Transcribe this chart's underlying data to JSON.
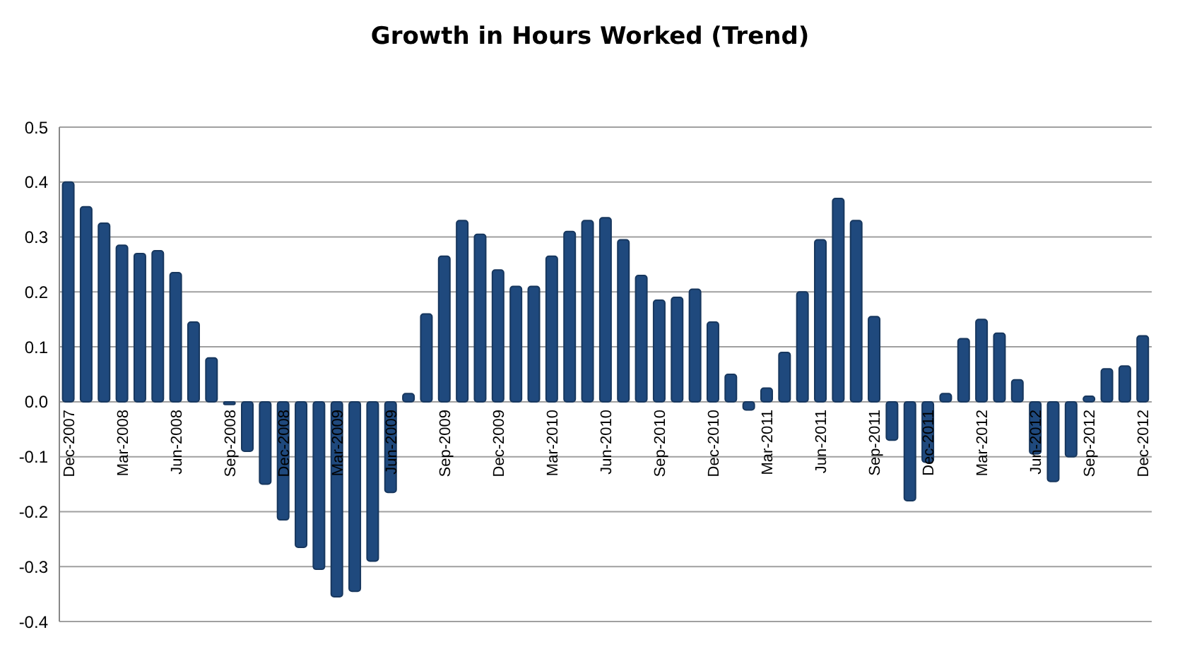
{
  "chart_data": {
    "type": "bar",
    "title": "Growth in Hours Worked (Trend)",
    "categories": [
      "Dec-2007",
      null,
      null,
      "Mar-2008",
      null,
      null,
      "Jun-2008",
      null,
      null,
      "Sep-2008",
      null,
      null,
      "Dec-2008",
      null,
      null,
      "Mar-2009",
      null,
      null,
      "Jun-2009",
      null,
      null,
      "Sep-2009",
      null,
      null,
      "Dec-2009",
      null,
      null,
      "Mar-2010",
      null,
      null,
      "Jun-2010",
      null,
      null,
      "Sep-2010",
      null,
      null,
      "Dec-2010",
      null,
      null,
      "Mar-2011",
      null,
      null,
      "Jun-2011",
      null,
      null,
      "Sep-2011",
      null,
      null,
      "Dec-2011",
      null,
      null,
      "Mar-2012",
      null,
      null,
      "Jun-2012",
      null,
      null,
      "Sep-2012",
      null,
      null,
      "Dec-2012"
    ],
    "values": [
      0.4,
      0.355,
      0.325,
      0.285,
      0.27,
      0.275,
      0.235,
      0.145,
      0.08,
      -0.005,
      -0.09,
      -0.15,
      -0.215,
      -0.265,
      -0.305,
      -0.355,
      -0.345,
      -0.29,
      -0.165,
      0.015,
      0.16,
      0.265,
      0.33,
      0.305,
      0.24,
      0.21,
      0.21,
      0.265,
      0.31,
      0.33,
      0.335,
      0.295,
      0.23,
      0.185,
      0.19,
      0.205,
      0.145,
      0.05,
      -0.015,
      0.025,
      0.09,
      0.2,
      0.295,
      0.37,
      0.33,
      0.155,
      -0.07,
      -0.18,
      -0.11,
      0.015,
      0.115,
      0.15,
      0.125,
      0.04,
      -0.095,
      -0.145,
      -0.1,
      0.01,
      0.06,
      0.065,
      0.12
    ],
    "color": "#1f497d",
    "ylim": [
      -0.4,
      0.5
    ],
    "yticks": [
      -0.4,
      -0.3,
      -0.2,
      -0.1,
      {
        "value": 0,
        "label": "0.0"
      },
      0.1,
      0.2,
      0.3,
      0.4,
      0.5
    ],
    "grid": "y"
  }
}
